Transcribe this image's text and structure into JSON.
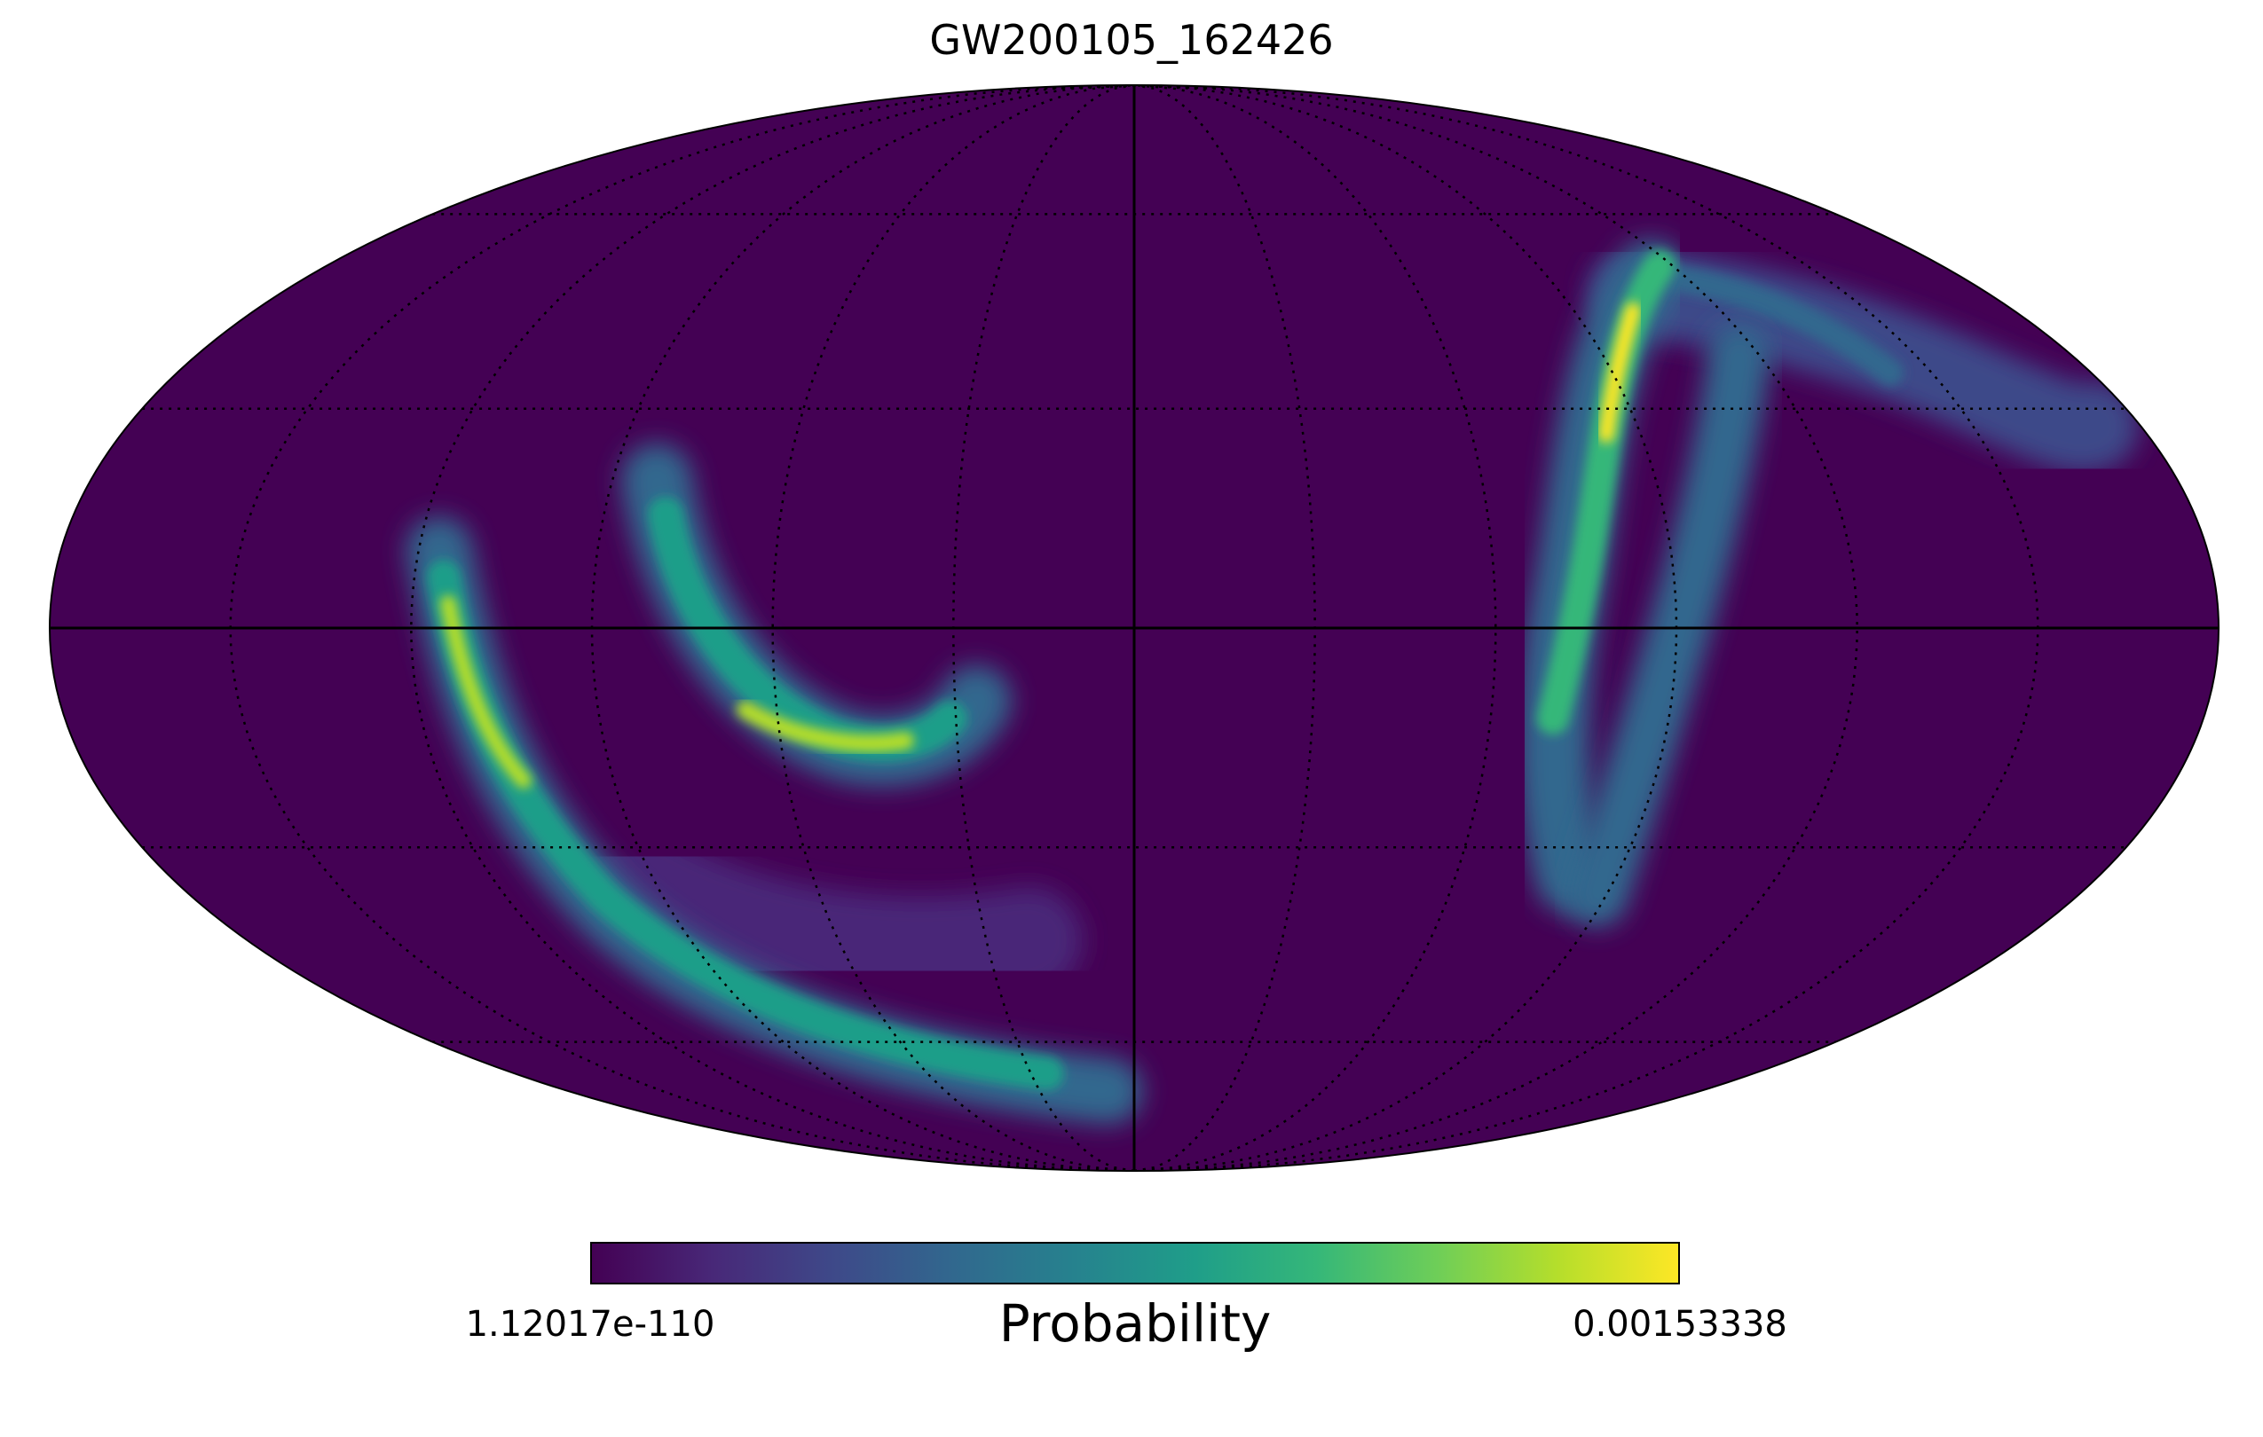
{
  "title": "GW200105_162426",
  "colormap": {
    "name": "viridis",
    "stops": [
      "#440154",
      "#482878",
      "#3e4989",
      "#31688e",
      "#26828e",
      "#1f9e89",
      "#35b779",
      "#6ece58",
      "#b5de2b",
      "#fde725"
    ]
  },
  "colorbar": {
    "label": "Probability",
    "min_label": "1.12017e-110",
    "max_label": "0.00153338"
  },
  "map": {
    "projection": "Mollweide",
    "graticule": {
      "meridian_step_deg": 30,
      "parallel_step_deg": 30,
      "style": "dotted"
    },
    "background_color": "#440154",
    "regions": [
      {
        "name": "western-outer-arc",
        "level": 0.85
      },
      {
        "name": "western-inner-arc",
        "level": 0.9
      },
      {
        "name": "southern-broad-lobe",
        "level": 0.3
      },
      {
        "name": "eastern-vertical-arc",
        "level": 0.95
      },
      {
        "name": "eastern-northern-band",
        "level": 0.5
      }
    ]
  }
}
